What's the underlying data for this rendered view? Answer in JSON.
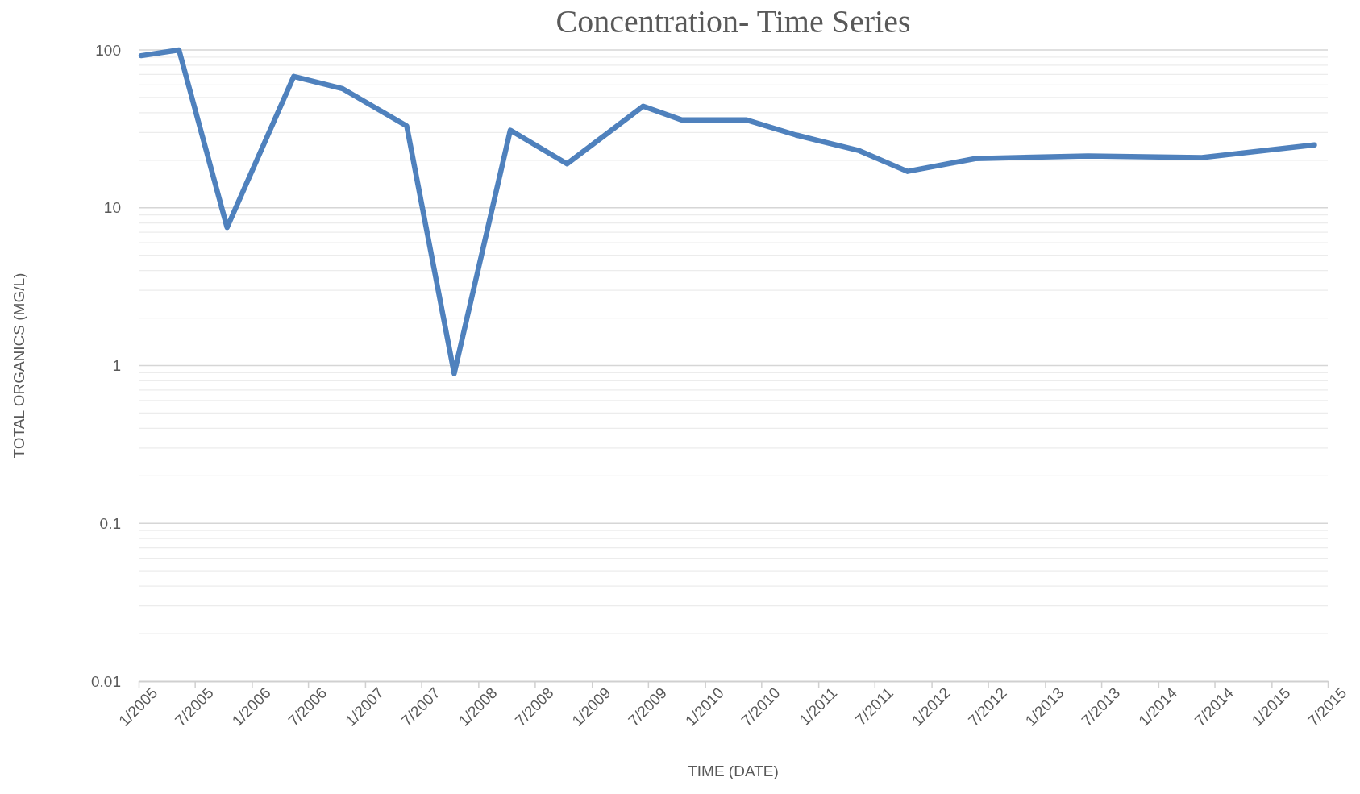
{
  "chart_data": {
    "type": "line",
    "title": "Concentration- Time Series",
    "xlabel": "TIME (DATE)",
    "ylabel": "TOTAL ORGANICS (MG/L)",
    "log": "y",
    "grid": "y",
    "line_style": "solid",
    "marker": "none",
    "ylim": [
      0.01,
      100
    ],
    "yticks": [
      0.01,
      0.1,
      1,
      10,
      100
    ],
    "xlim": [
      "2005-01-01",
      "2015-07-01"
    ],
    "xticks": [
      {
        "value": "2005-01-01",
        "label": "1/2005"
      },
      {
        "value": "2005-07-01",
        "label": "7/2005"
      },
      {
        "value": "2006-01-01",
        "label": "1/2006"
      },
      {
        "value": "2006-07-01",
        "label": "7/2006"
      },
      {
        "value": "2007-01-01",
        "label": "1/2007"
      },
      {
        "value": "2007-07-01",
        "label": "7/2007"
      },
      {
        "value": "2008-01-01",
        "label": "1/2008"
      },
      {
        "value": "2008-07-01",
        "label": "7/2008"
      },
      {
        "value": "2009-01-01",
        "label": "1/2009"
      },
      {
        "value": "2009-07-01",
        "label": "7/2009"
      },
      {
        "value": "2010-01-01",
        "label": "1/2010"
      },
      {
        "value": "2010-07-01",
        "label": "7/2010"
      },
      {
        "value": "2011-01-01",
        "label": "1/2011"
      },
      {
        "value": "2011-07-01",
        "label": "7/2011"
      },
      {
        "value": "2012-01-01",
        "label": "1/2012"
      },
      {
        "value": "2012-07-01",
        "label": "7/2012"
      },
      {
        "value": "2013-01-01",
        "label": "1/2013"
      },
      {
        "value": "2013-07-01",
        "label": "7/2013"
      },
      {
        "value": "2014-01-01",
        "label": "1/2014"
      },
      {
        "value": "2014-07-01",
        "label": "7/2014"
      },
      {
        "value": "2015-01-01",
        "label": "1/2015"
      },
      {
        "value": "2015-07-01",
        "label": "7/2015"
      }
    ],
    "x": [
      "2005-01-09",
      "2005-05-11",
      "2005-10-13",
      "2006-05-16",
      "2006-10-19",
      "2007-05-15",
      "2007-10-15",
      "2008-04-13",
      "2008-10-13",
      "2009-06-15",
      "2009-10-18",
      "2010-05-15",
      "2010-10-19",
      "2011-05-13",
      "2011-10-15",
      "2012-05-21",
      "2013-05-19",
      "2014-05-21",
      "2015-05-19"
    ],
    "series": [
      {
        "color": "#4f81bd",
        "values": [
          92,
          100,
          7.5,
          68,
          57,
          33,
          0.89,
          31,
          19,
          44,
          36,
          36,
          29,
          23,
          17,
          20.5,
          21.3,
          20.8,
          25
        ]
      }
    ]
  }
}
